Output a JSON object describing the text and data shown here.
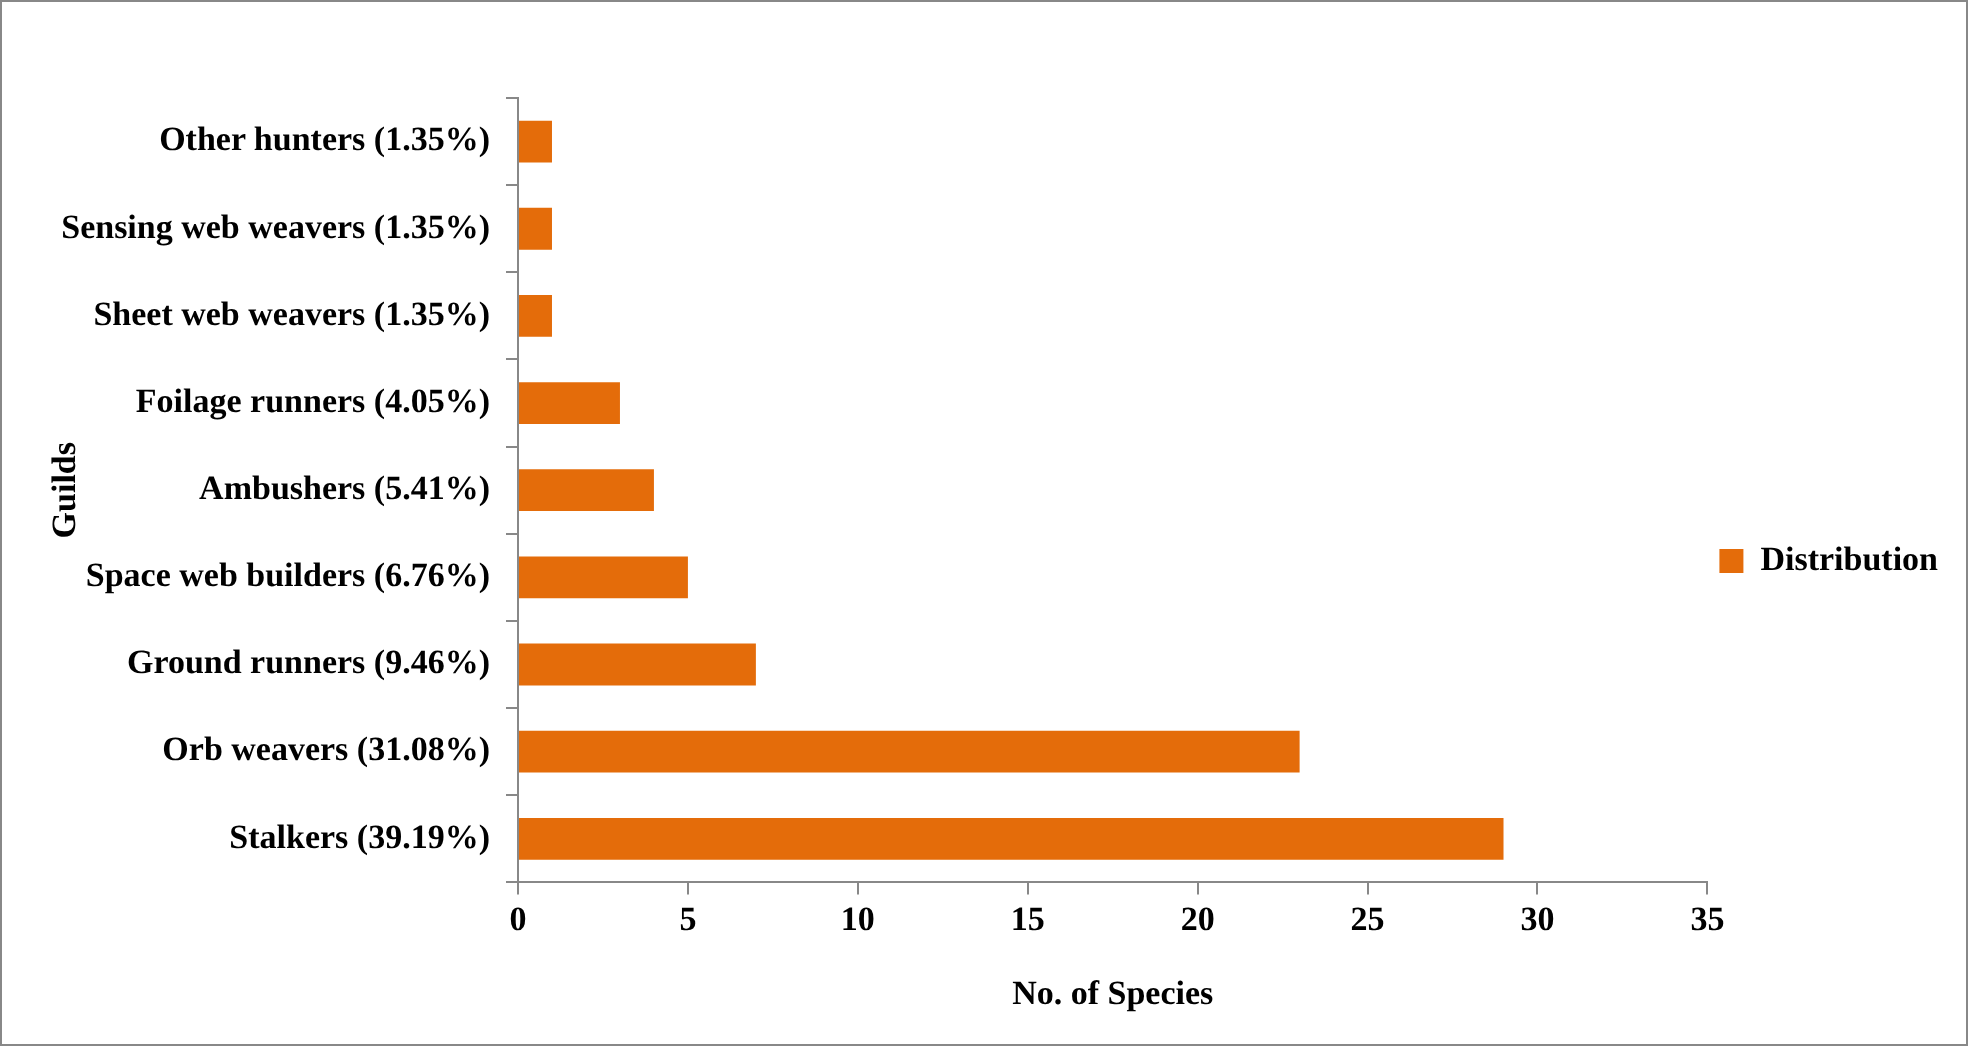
{
  "chart_data": {
    "type": "bar",
    "orientation": "horizontal",
    "xlabel": "No. of Species",
    "ylabel": "Guilds",
    "categories": [
      "Other hunters (1.35%)",
      "Sensing web weavers (1.35%)",
      "Sheet web weavers (1.35%)",
      "Foilage runners (4.05%)",
      "Ambushers (5.41%)",
      "Space web builders (6.76%)",
      "Ground runners (9.46%)",
      "Orb weavers (31.08%)",
      "Stalkers (39.19%)"
    ],
    "series": [
      {
        "name": "Distribution",
        "color": "#e46c0a",
        "values": [
          1,
          1,
          1,
          3,
          4,
          5,
          7,
          23,
          29
        ]
      }
    ],
    "xlim": [
      0,
      35
    ],
    "xticks": [
      0,
      5,
      10,
      15,
      20,
      25,
      30,
      35
    ],
    "grid": false,
    "legend": "right"
  }
}
